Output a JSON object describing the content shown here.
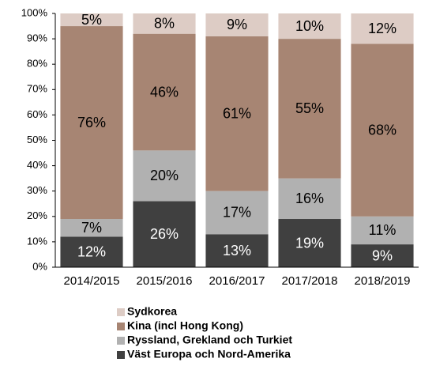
{
  "chart_data": {
    "type": "stacked_bar",
    "categories": [
      "2014/2015",
      "2015/2016",
      "2016/2017",
      "2017/2018",
      "2018/2019"
    ],
    "series": [
      {
        "name": "Väst Europa och Nord-Amerika",
        "color": "#404040",
        "label_color": "#ffffff",
        "values": [
          12,
          26,
          13,
          19,
          9
        ],
        "value_labels": [
          "12%",
          "26%",
          "13%",
          "19%",
          "9%"
        ]
      },
      {
        "name": "Ryssland, Grekland och Turkiet",
        "color": "#b1b1b1",
        "label_color": "#000000",
        "values": [
          7,
          20,
          17,
          16,
          11
        ],
        "value_labels": [
          "7%",
          "20%",
          "17%",
          "16%",
          "11%"
        ]
      },
      {
        "name": "Kina (incl Hong Kong)",
        "color": "#a78573",
        "label_color": "#000000",
        "values": [
          76,
          46,
          61,
          55,
          68
        ],
        "value_labels": [
          "76%",
          "46%",
          "61%",
          "55%",
          "68%"
        ]
      },
      {
        "name": "Sydkorea",
        "color": "#ddccc5",
        "label_color": "#000000",
        "values": [
          5,
          8,
          9,
          10,
          12
        ],
        "value_labels": [
          "5%",
          "8%",
          "9%",
          "10%",
          "12%"
        ]
      }
    ],
    "ylim": [
      0,
      100
    ],
    "yticks": [
      {
        "value": 0,
        "label": "0%"
      },
      {
        "value": 10,
        "label": "10%"
      },
      {
        "value": 20,
        "label": "20%"
      },
      {
        "value": 30,
        "label": "30%"
      },
      {
        "value": 40,
        "label": "40%"
      },
      {
        "value": 50,
        "label": "50%"
      },
      {
        "value": 60,
        "label": "60%"
      },
      {
        "value": 70,
        "label": "70%"
      },
      {
        "value": 80,
        "label": "80%"
      },
      {
        "value": 90,
        "label": "90%"
      },
      {
        "value": 100,
        "label": "100%"
      }
    ],
    "grid": false
  }
}
